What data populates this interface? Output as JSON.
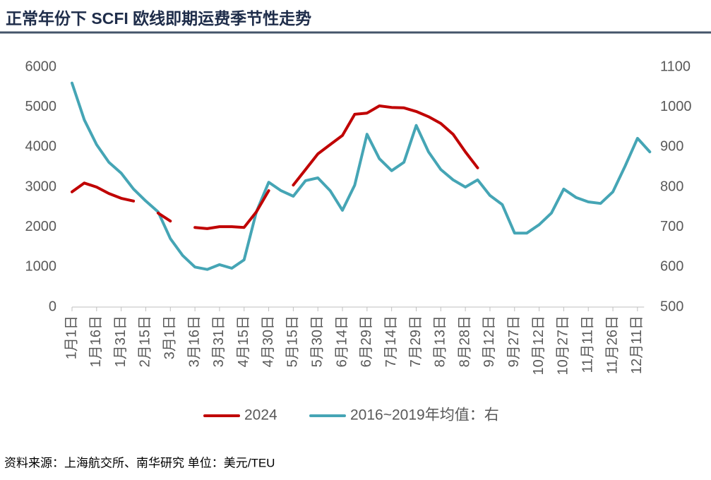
{
  "chart_data": {
    "type": "line",
    "title": "正常年份下 SCFI 欧线即期运费季节性走势",
    "source": "资料来源：上海航交所、南华研究 单位：美元/TEU",
    "categories": [
      "1月1日",
      null,
      "1月16日",
      null,
      "1月31日",
      null,
      "2月15日",
      null,
      "3月1日",
      null,
      "3月16日",
      null,
      "3月31日",
      null,
      "4月15日",
      null,
      "4月30日",
      null,
      "5月15日",
      null,
      "5月30日",
      null,
      "6月14日",
      null,
      "6月29日",
      null,
      "7月14日",
      null,
      "7月29日",
      null,
      "8月13日",
      null,
      "8月28日",
      null,
      "9月12日",
      null,
      "9月27日",
      null,
      "10月12日",
      null,
      "10月27日",
      null,
      "11月11日",
      null,
      "11月26日",
      null,
      "12月11日",
      null
    ],
    "ylim": [
      0,
      6000
    ],
    "yticks": [
      0,
      1000,
      2000,
      3000,
      4000,
      5000,
      6000
    ],
    "y2lim": [
      500,
      1100
    ],
    "y2ticks": [
      500,
      600,
      700,
      800,
      900,
      1000,
      1100
    ],
    "series": [
      {
        "name": "2024",
        "color": "#c00000",
        "values": [
          2880,
          3100,
          3000,
          2840,
          2720,
          2650,
          null,
          2350,
          2150,
          null,
          1990,
          1960,
          2010,
          2010,
          1990,
          2380,
          2910,
          null,
          3050,
          3440,
          3830,
          4060,
          4290,
          4820,
          4850,
          5030,
          4990,
          4980,
          4890,
          4760,
          4590,
          4320,
          3880,
          3480,
          null,
          null,
          null,
          null,
          null,
          null,
          null,
          null,
          null,
          null,
          null,
          null,
          null,
          null
        ]
      },
      {
        "name": "2016~2019年均值：右",
        "color": "#45a5b5",
        "axis": "y2",
        "values": [
          1060,
          968,
          906,
          862,
          835,
          795,
          765,
          738,
          671,
          629,
          600,
          594,
          606,
          597,
          618,
          738,
          812,
          791,
          777,
          816,
          823,
          791,
          742,
          805,
          932,
          871,
          841,
          862,
          954,
          888,
          844,
          818,
          800,
          818,
          779,
          756,
          685,
          685,
          706,
          735,
          795,
          774,
          763,
          759,
          788,
          853,
          922,
          888
        ]
      }
    ]
  }
}
